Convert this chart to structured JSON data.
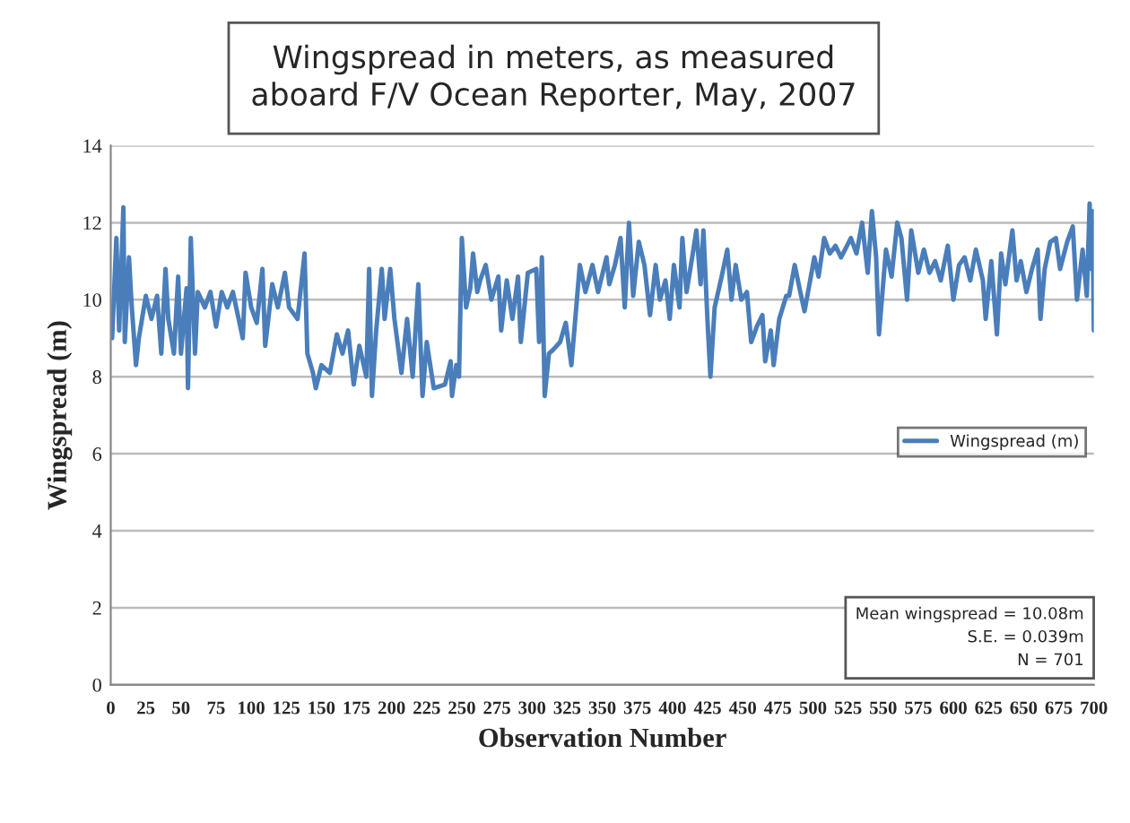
{
  "chart_data": {
    "type": "line",
    "title": "Wingspread in meters, as measured\naboard F/V Ocean Reporter, May, 2007",
    "xlabel": "Observation Number",
    "ylabel": "Wingspread (m)",
    "xlim": [
      0,
      700
    ],
    "xticks": [
      0,
      25,
      50,
      75,
      100,
      125,
      150,
      175,
      200,
      225,
      250,
      275,
      300,
      325,
      350,
      375,
      400,
      425,
      450,
      475,
      500,
      525,
      550,
      575,
      600,
      625,
      650,
      675,
      700
    ],
    "ylim": [
      0,
      14
    ],
    "yticks": [
      0,
      2,
      4,
      6,
      8,
      10,
      12,
      14
    ],
    "grid": "y",
    "legend": "right",
    "marker": "none",
    "line_style": "solid",
    "annotations": [
      "Mean wingspread = 10.08m\nS.E. = 0.039m\nN = 701"
    ],
    "series": [
      {
        "name": "Wingspread (m)",
        "color": "#4a7ebb",
        "x": [
          1,
          4,
          6,
          9,
          10,
          13,
          15,
          18,
          20,
          25,
          29,
          33,
          36,
          39,
          41,
          45,
          48,
          50,
          54,
          55,
          57,
          60,
          62,
          67,
          71,
          75,
          79,
          83,
          87,
          94,
          96,
          100,
          104,
          108,
          110,
          115,
          119,
          124,
          127,
          133,
          138,
          140,
          144,
          146,
          150,
          156,
          161,
          165,
          169,
          173,
          177,
          182,
          184,
          186,
          189,
          193,
          195,
          199,
          202,
          207,
          211,
          215,
          219,
          222,
          225,
          230,
          238,
          242,
          243,
          246,
          248,
          250,
          253,
          256,
          258,
          261,
          263,
          267,
          271,
          276,
          278,
          282,
          286,
          290,
          292,
          297,
          303,
          305,
          307,
          309,
          312,
          315,
          320,
          324,
          328,
          334,
          338,
          343,
          347,
          353,
          355,
          359,
          363,
          366,
          369,
          372,
          376,
          380,
          384,
          388,
          391,
          395,
          398,
          401,
          405,
          407,
          410,
          414,
          417,
          420,
          422,
          425,
          427,
          430,
          435,
          439,
          442,
          445,
          449,
          453,
          456,
          460,
          464,
          466,
          470,
          472,
          476,
          481,
          483,
          487,
          491,
          494,
          497,
          501,
          504,
          508,
          512,
          516,
          520,
          527,
          531,
          535,
          539,
          542,
          545,
          547,
          552,
          556,
          560,
          563,
          567,
          570,
          575,
          579,
          583,
          587,
          591,
          596,
          600,
          604,
          608,
          612,
          616,
          621,
          623,
          627,
          631,
          634,
          637,
          642,
          645,
          648,
          652,
          656,
          660,
          662,
          665,
          669,
          673,
          676,
          681,
          685,
          688,
          692,
          695,
          697,
          698,
          699,
          700
        ],
        "values": [
          9.0,
          11.6,
          9.2,
          12.4,
          8.9,
          11.1,
          9.8,
          8.3,
          9.0,
          10.1,
          9.5,
          10.1,
          8.6,
          10.8,
          9.5,
          8.6,
          10.6,
          8.6,
          10.3,
          7.7,
          11.6,
          8.6,
          10.2,
          9.8,
          10.2,
          9.3,
          10.2,
          9.8,
          10.2,
          9.0,
          10.7,
          9.8,
          9.4,
          10.8,
          8.8,
          10.4,
          9.8,
          10.7,
          9.8,
          9.5,
          11.2,
          8.6,
          8.1,
          7.7,
          8.3,
          8.1,
          9.1,
          8.6,
          9.2,
          7.8,
          8.8,
          8.0,
          10.8,
          7.5,
          9.2,
          10.8,
          9.5,
          10.8,
          9.5,
          8.1,
          9.5,
          8.0,
          10.4,
          7.5,
          8.9,
          7.7,
          7.8,
          8.4,
          7.5,
          8.3,
          8.0,
          11.6,
          9.8,
          10.3,
          11.2,
          10.2,
          10.5,
          10.9,
          10.0,
          10.6,
          9.2,
          10.5,
          9.5,
          10.6,
          8.9,
          10.7,
          10.8,
          8.9,
          11.1,
          7.5,
          8.6,
          8.7,
          8.9,
          9.4,
          8.3,
          10.9,
          10.2,
          10.9,
          10.2,
          11.1,
          10.4,
          10.9,
          11.6,
          9.8,
          12.0,
          10.1,
          11.5,
          10.9,
          9.6,
          10.9,
          10.0,
          10.5,
          9.5,
          10.9,
          9.8,
          11.6,
          10.2,
          11.1,
          11.8,
          10.4,
          11.8,
          9.4,
          8.0,
          9.8,
          10.6,
          11.3,
          10.0,
          10.9,
          10.0,
          10.2,
          8.9,
          9.3,
          9.6,
          8.4,
          9.2,
          8.3,
          9.5,
          10.1,
          10.1,
          10.9,
          10.2,
          9.7,
          10.3,
          11.1,
          10.6,
          11.6,
          11.2,
          11.4,
          11.1,
          11.6,
          11.2,
          12.0,
          10.7,
          12.3,
          11.1,
          9.1,
          11.3,
          10.6,
          12.0,
          11.6,
          10.0,
          11.8,
          10.7,
          11.3,
          10.7,
          11.0,
          10.5,
          11.4,
          10.0,
          10.9,
          11.1,
          10.5,
          11.3,
          10.5,
          9.5,
          11.0,
          9.1,
          11.2,
          10.4,
          11.8,
          10.5,
          11.0,
          10.2,
          10.8,
          11.3,
          9.5,
          10.8,
          11.5,
          11.6,
          10.8,
          11.5,
          11.9,
          10.0,
          11.3,
          10.1,
          12.5,
          10.8,
          12.3,
          9.2
        ]
      }
    ]
  }
}
